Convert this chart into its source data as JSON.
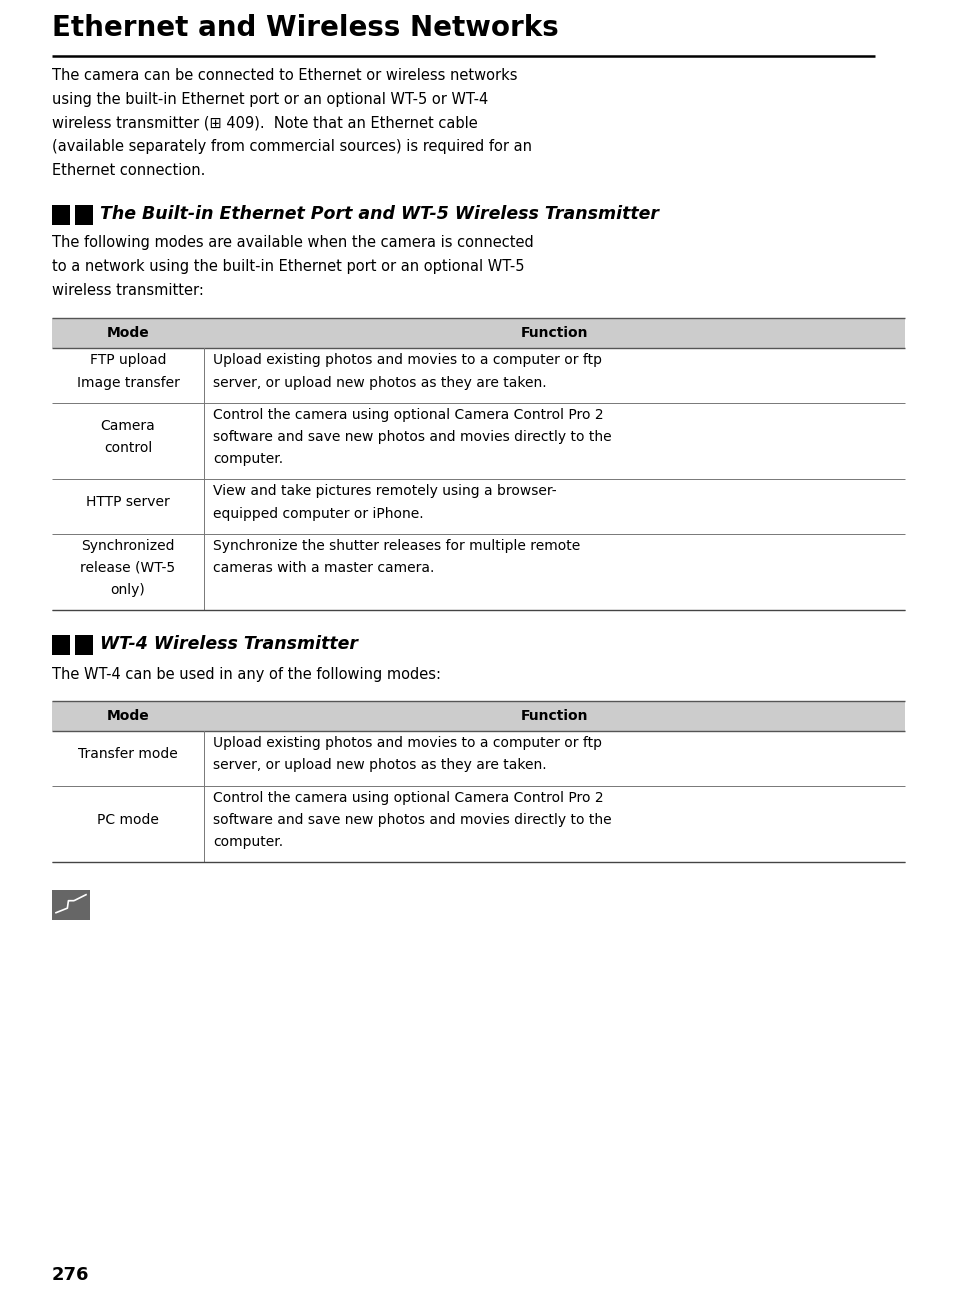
{
  "bg_color": "#ffffff",
  "page_number": "276",
  "title": "Ethernet and Wireless Networks",
  "intro_lines": [
    "The camera can be connected to Ethernet or wireless networks",
    "using the built-in Ethernet port or an optional WT-5 or WT-4",
    "wireless transmitter (⊞ 409).  Note that an Ethernet cable",
    "(available separately from commercial sources) is required for an",
    "Ethernet connection."
  ],
  "section1_heading": "The Built-in Ethernet Port and WT-5 Wireless Transmitter",
  "section1_intro_lines": [
    "The following modes are available when the camera is connected",
    "to a network using the built-in Ethernet port or an optional WT-5",
    "wireless transmitter:"
  ],
  "table1": {
    "col1_header": "Mode",
    "col2_header": "Function",
    "rows": [
      {
        "mode_lines": [
          "FTP upload",
          "Image transfer"
        ],
        "func_lines": [
          "Upload existing photos and movies to a computer or ftp",
          "server, or upload new photos as they are taken."
        ]
      },
      {
        "mode_lines": [
          "Camera",
          "control"
        ],
        "func_lines": [
          "Control the camera using optional Camera Control Pro 2",
          "software and save new photos and movies directly to the",
          "computer."
        ]
      },
      {
        "mode_lines": [
          "HTTP server"
        ],
        "func_lines": [
          "View and take pictures remotely using a browser-",
          "equipped computer or iPhone."
        ]
      },
      {
        "mode_lines": [
          "Synchronized",
          "release (WT-5",
          "only)"
        ],
        "func_lines": [
          "Synchronize the shutter releases for multiple remote",
          "cameras with a master camera."
        ]
      }
    ]
  },
  "section2_heading": "WT-4 Wireless Transmitter",
  "section2_intro": "The WT-4 can be used in any of the following modes:",
  "table2": {
    "col1_header": "Mode",
    "col2_header": "Function",
    "rows": [
      {
        "mode_lines": [
          "Transfer mode"
        ],
        "func_lines": [
          "Upload existing photos and movies to a computer or ftp",
          "server, or upload new photos as they are taken."
        ]
      },
      {
        "mode_lines": [
          "PC mode"
        ],
        "func_lines": [
          "Control the camera using optional Camera Control Pro 2",
          "software and save new photos and movies directly to the",
          "computer."
        ]
      }
    ]
  },
  "header_bg": "#cccccc",
  "title_fontsize": 20,
  "body_fontsize": 10.5,
  "table_fontsize": 10.0,
  "section_fontsize": 12.5,
  "page_num_fontsize": 13
}
